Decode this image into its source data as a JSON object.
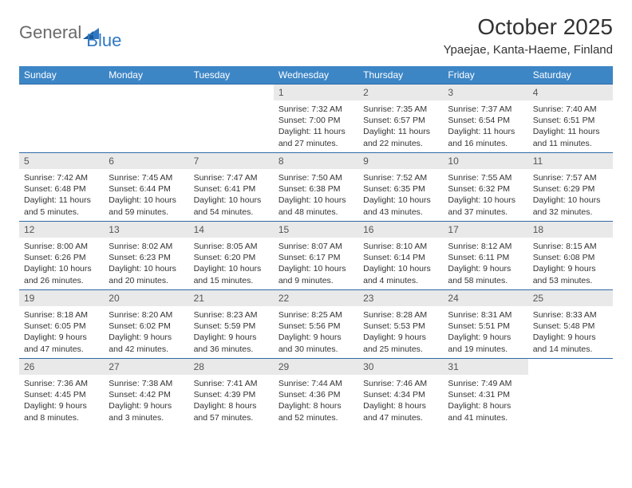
{
  "logo": {
    "part1": "General",
    "part2": "Blue"
  },
  "title": "October 2025",
  "location": "Ypaejae, Kanta-Haeme, Finland",
  "colors": {
    "header_bg": "#3d86c6",
    "header_text": "#ffffff",
    "daynum_bg": "#e9e9e9",
    "border": "#2f6aa8",
    "logo_gray": "#6a6a6a",
    "logo_blue": "#2f78c3"
  },
  "weekdays": [
    "Sunday",
    "Monday",
    "Tuesday",
    "Wednesday",
    "Thursday",
    "Friday",
    "Saturday"
  ],
  "weeks": [
    [
      null,
      null,
      null,
      {
        "n": "1",
        "sr": "Sunrise: 7:32 AM",
        "ss": "Sunset: 7:00 PM",
        "dl": "Daylight: 11 hours and 27 minutes."
      },
      {
        "n": "2",
        "sr": "Sunrise: 7:35 AM",
        "ss": "Sunset: 6:57 PM",
        "dl": "Daylight: 11 hours and 22 minutes."
      },
      {
        "n": "3",
        "sr": "Sunrise: 7:37 AM",
        "ss": "Sunset: 6:54 PM",
        "dl": "Daylight: 11 hours and 16 minutes."
      },
      {
        "n": "4",
        "sr": "Sunrise: 7:40 AM",
        "ss": "Sunset: 6:51 PM",
        "dl": "Daylight: 11 hours and 11 minutes."
      }
    ],
    [
      {
        "n": "5",
        "sr": "Sunrise: 7:42 AM",
        "ss": "Sunset: 6:48 PM",
        "dl": "Daylight: 11 hours and 5 minutes."
      },
      {
        "n": "6",
        "sr": "Sunrise: 7:45 AM",
        "ss": "Sunset: 6:44 PM",
        "dl": "Daylight: 10 hours and 59 minutes."
      },
      {
        "n": "7",
        "sr": "Sunrise: 7:47 AM",
        "ss": "Sunset: 6:41 PM",
        "dl": "Daylight: 10 hours and 54 minutes."
      },
      {
        "n": "8",
        "sr": "Sunrise: 7:50 AM",
        "ss": "Sunset: 6:38 PM",
        "dl": "Daylight: 10 hours and 48 minutes."
      },
      {
        "n": "9",
        "sr": "Sunrise: 7:52 AM",
        "ss": "Sunset: 6:35 PM",
        "dl": "Daylight: 10 hours and 43 minutes."
      },
      {
        "n": "10",
        "sr": "Sunrise: 7:55 AM",
        "ss": "Sunset: 6:32 PM",
        "dl": "Daylight: 10 hours and 37 minutes."
      },
      {
        "n": "11",
        "sr": "Sunrise: 7:57 AM",
        "ss": "Sunset: 6:29 PM",
        "dl": "Daylight: 10 hours and 32 minutes."
      }
    ],
    [
      {
        "n": "12",
        "sr": "Sunrise: 8:00 AM",
        "ss": "Sunset: 6:26 PM",
        "dl": "Daylight: 10 hours and 26 minutes."
      },
      {
        "n": "13",
        "sr": "Sunrise: 8:02 AM",
        "ss": "Sunset: 6:23 PM",
        "dl": "Daylight: 10 hours and 20 minutes."
      },
      {
        "n": "14",
        "sr": "Sunrise: 8:05 AM",
        "ss": "Sunset: 6:20 PM",
        "dl": "Daylight: 10 hours and 15 minutes."
      },
      {
        "n": "15",
        "sr": "Sunrise: 8:07 AM",
        "ss": "Sunset: 6:17 PM",
        "dl": "Daylight: 10 hours and 9 minutes."
      },
      {
        "n": "16",
        "sr": "Sunrise: 8:10 AM",
        "ss": "Sunset: 6:14 PM",
        "dl": "Daylight: 10 hours and 4 minutes."
      },
      {
        "n": "17",
        "sr": "Sunrise: 8:12 AM",
        "ss": "Sunset: 6:11 PM",
        "dl": "Daylight: 9 hours and 58 minutes."
      },
      {
        "n": "18",
        "sr": "Sunrise: 8:15 AM",
        "ss": "Sunset: 6:08 PM",
        "dl": "Daylight: 9 hours and 53 minutes."
      }
    ],
    [
      {
        "n": "19",
        "sr": "Sunrise: 8:18 AM",
        "ss": "Sunset: 6:05 PM",
        "dl": "Daylight: 9 hours and 47 minutes."
      },
      {
        "n": "20",
        "sr": "Sunrise: 8:20 AM",
        "ss": "Sunset: 6:02 PM",
        "dl": "Daylight: 9 hours and 42 minutes."
      },
      {
        "n": "21",
        "sr": "Sunrise: 8:23 AM",
        "ss": "Sunset: 5:59 PM",
        "dl": "Daylight: 9 hours and 36 minutes."
      },
      {
        "n": "22",
        "sr": "Sunrise: 8:25 AM",
        "ss": "Sunset: 5:56 PM",
        "dl": "Daylight: 9 hours and 30 minutes."
      },
      {
        "n": "23",
        "sr": "Sunrise: 8:28 AM",
        "ss": "Sunset: 5:53 PM",
        "dl": "Daylight: 9 hours and 25 minutes."
      },
      {
        "n": "24",
        "sr": "Sunrise: 8:31 AM",
        "ss": "Sunset: 5:51 PM",
        "dl": "Daylight: 9 hours and 19 minutes."
      },
      {
        "n": "25",
        "sr": "Sunrise: 8:33 AM",
        "ss": "Sunset: 5:48 PM",
        "dl": "Daylight: 9 hours and 14 minutes."
      }
    ],
    [
      {
        "n": "26",
        "sr": "Sunrise: 7:36 AM",
        "ss": "Sunset: 4:45 PM",
        "dl": "Daylight: 9 hours and 8 minutes."
      },
      {
        "n": "27",
        "sr": "Sunrise: 7:38 AM",
        "ss": "Sunset: 4:42 PM",
        "dl": "Daylight: 9 hours and 3 minutes."
      },
      {
        "n": "28",
        "sr": "Sunrise: 7:41 AM",
        "ss": "Sunset: 4:39 PM",
        "dl": "Daylight: 8 hours and 57 minutes."
      },
      {
        "n": "29",
        "sr": "Sunrise: 7:44 AM",
        "ss": "Sunset: 4:36 PM",
        "dl": "Daylight: 8 hours and 52 minutes."
      },
      {
        "n": "30",
        "sr": "Sunrise: 7:46 AM",
        "ss": "Sunset: 4:34 PM",
        "dl": "Daylight: 8 hours and 47 minutes."
      },
      {
        "n": "31",
        "sr": "Sunrise: 7:49 AM",
        "ss": "Sunset: 4:31 PM",
        "dl": "Daylight: 8 hours and 41 minutes."
      },
      null
    ]
  ]
}
